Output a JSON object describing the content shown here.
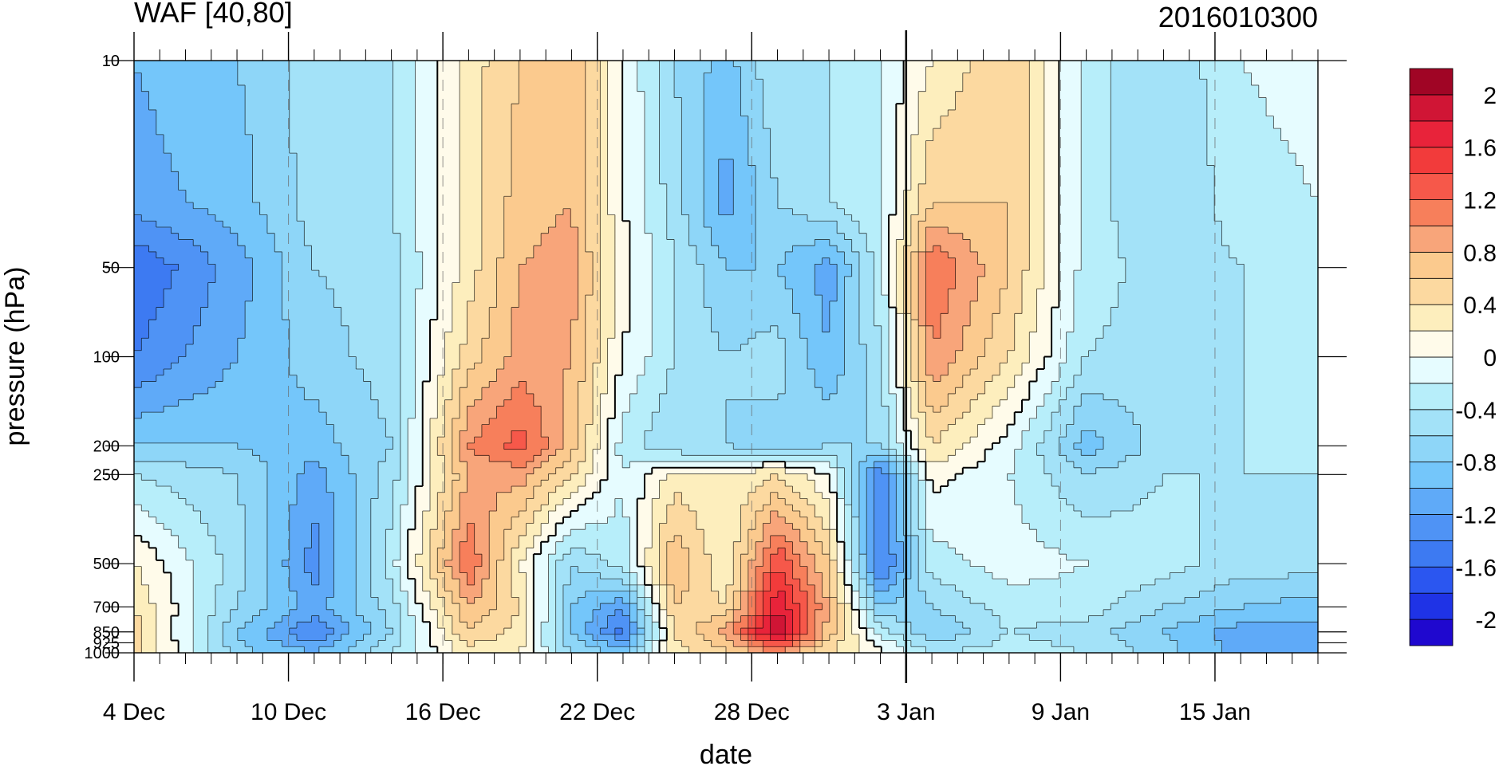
{
  "chart_data": {
    "type": "heatmap",
    "title": "WAF [40,80]",
    "subtitle": "2016010300",
    "xlabel": "date",
    "ylabel": "pressure (hPa)",
    "x_ticks": [
      {
        "date": "2015-12-04",
        "label": "4 Dec"
      },
      {
        "date": "2015-12-10",
        "label": "10 Dec"
      },
      {
        "date": "2015-12-16",
        "label": "16 Dec"
      },
      {
        "date": "2015-12-22",
        "label": "22 Dec"
      },
      {
        "date": "2015-12-28",
        "label": "28 Dec"
      },
      {
        "date": "2016-01-03",
        "label": "3 Jan"
      },
      {
        "date": "2016-01-09",
        "label": "9 Jan"
      },
      {
        "date": "2016-01-15",
        "label": "15 Jan"
      }
    ],
    "xlim": [
      "2015-12-04",
      "2016-01-19"
    ],
    "y_ticks": [
      10,
      50,
      100,
      200,
      250,
      500,
      700,
      850,
      925,
      1000
    ],
    "y_tick_labels": [
      "10",
      "50",
      "100",
      "200",
      "250",
      "500",
      "700",
      "850",
      "925",
      "1000"
    ],
    "ylim": [
      1000,
      10
    ],
    "y_scale": "log",
    "vertical_marker": {
      "date": "2016-01-03",
      "style": "solid black"
    },
    "dashed_gridlines": [
      "2015-12-10",
      "2015-12-16",
      "2015-12-22",
      "2015-12-28",
      "2016-01-09",
      "2016-01-15"
    ],
    "colorbar": {
      "placement": "right",
      "levels": [
        -2.2,
        -2.0,
        -1.8,
        -1.6,
        -1.4,
        -1.2,
        -1.0,
        -0.8,
        -0.6,
        -0.4,
        -0.2,
        0,
        0.2,
        0.4,
        0.6,
        0.8,
        1.0,
        1.2,
        1.4,
        1.6,
        1.8,
        2.0,
        2.2
      ],
      "colors": [
        "#1f08cf",
        "#1f33e6",
        "#2b56f0",
        "#3d7af2",
        "#4f93f5",
        "#5faaf8",
        "#74c6fa",
        "#8ed6f8",
        "#a3e2f8",
        "#b7eefa",
        "#e6fcff",
        "#fffbea",
        "#fdeebd",
        "#fcd9a0",
        "#fbca8e",
        "#f8a57a",
        "#f77f5b",
        "#f6584a",
        "#f23b3b",
        "#e8233a",
        "#d01535",
        "#a00525"
      ],
      "tick_values": [
        2,
        1.6,
        1.2,
        0.8,
        0.4,
        0,
        -0.4,
        -0.8,
        -1.2,
        -1.6,
        -2
      ],
      "tick_labels": [
        "2",
        "1.6",
        "1.2",
        "0.8",
        "0.4",
        "0",
        "-0.4",
        "-0.8",
        "-1.2",
        "-1.6",
        "-2"
      ]
    },
    "grid": {
      "dates": [
        "2015-12-04",
        "2015-12-08",
        "2015-12-11",
        "2015-12-14",
        "2015-12-17",
        "2015-12-19",
        "2015-12-21",
        "2015-12-23",
        "2015-12-25",
        "2015-12-27",
        "2015-12-29",
        "2015-12-31",
        "2016-01-02",
        "2016-01-04",
        "2016-01-07",
        "2016-01-10",
        "2016-01-13",
        "2016-01-16",
        "2016-01-19"
      ],
      "pressures": [
        10,
        30,
        50,
        100,
        200,
        250,
        500,
        700,
        850,
        1000
      ],
      "values": [
        [
          -1.0,
          -0.8,
          -0.5,
          -0.4,
          0.3,
          0.6,
          0.8,
          0.0,
          -0.6,
          -0.9,
          -0.4,
          -0.4,
          -0.2,
          0.2,
          0.6,
          -0.3,
          -0.6,
          -0.2,
          -0.1
        ],
        [
          -1.1,
          -0.9,
          -0.5,
          -0.4,
          0.3,
          0.7,
          0.8,
          0.0,
          -0.5,
          -1.1,
          -0.6,
          -0.4,
          -0.2,
          0.6,
          0.6,
          -0.3,
          -0.6,
          -0.3,
          -0.2
        ],
        [
          -1.6,
          -1.1,
          -0.6,
          -0.5,
          0.3,
          0.8,
          0.9,
          0.1,
          -0.4,
          -0.8,
          -0.8,
          -1.1,
          -0.3,
          1.2,
          0.6,
          -0.3,
          -0.5,
          -0.4,
          -0.2
        ],
        [
          -1.4,
          -1.0,
          -0.7,
          -0.5,
          0.5,
          0.9,
          0.8,
          0.0,
          -0.4,
          -0.6,
          -0.5,
          -1.0,
          -0.4,
          1.0,
          0.4,
          -0.4,
          -0.5,
          -0.4,
          -0.3
        ],
        [
          -0.8,
          -0.8,
          -0.9,
          -0.6,
          1.0,
          1.3,
          0.7,
          -0.3,
          -0.6,
          -0.6,
          -0.7,
          -0.6,
          -0.6,
          0.4,
          -0.1,
          -0.9,
          -0.5,
          -0.4,
          -0.3
        ],
        [
          -0.4,
          -0.6,
          -1.1,
          -0.5,
          0.8,
          0.9,
          0.4,
          -0.2,
          0.3,
          0.2,
          0.4,
          0.0,
          -1.4,
          0.1,
          -0.2,
          -0.6,
          -0.4,
          -0.4,
          -0.4
        ],
        [
          0.2,
          -0.5,
          -1.3,
          -0.3,
          1.2,
          0.2,
          -0.6,
          -0.3,
          0.8,
          0.2,
          1.4,
          0.6,
          -1.5,
          -0.3,
          -0.1,
          -0.2,
          -0.3,
          -0.5,
          -0.5
        ],
        [
          0.4,
          -0.6,
          -1.1,
          -0.5,
          0.8,
          0.4,
          -0.8,
          -1.2,
          0.6,
          0.4,
          1.8,
          0.8,
          -0.8,
          -0.6,
          -0.3,
          -0.3,
          -0.6,
          -0.8,
          -0.9
        ],
        [
          0.5,
          -0.8,
          -1.4,
          -0.6,
          0.6,
          0.3,
          -0.8,
          -1.5,
          0.4,
          0.9,
          2.0,
          0.7,
          -0.3,
          -0.8,
          -0.4,
          -0.5,
          -0.8,
          -1.1,
          -1.1
        ],
        [
          0.5,
          -0.7,
          -1.0,
          -0.4,
          0.3,
          0.2,
          -0.6,
          -0.8,
          0.3,
          0.5,
          1.0,
          0.4,
          0.1,
          -0.4,
          -0.3,
          -0.4,
          -0.7,
          -1.1,
          -1.0
        ]
      ]
    }
  }
}
